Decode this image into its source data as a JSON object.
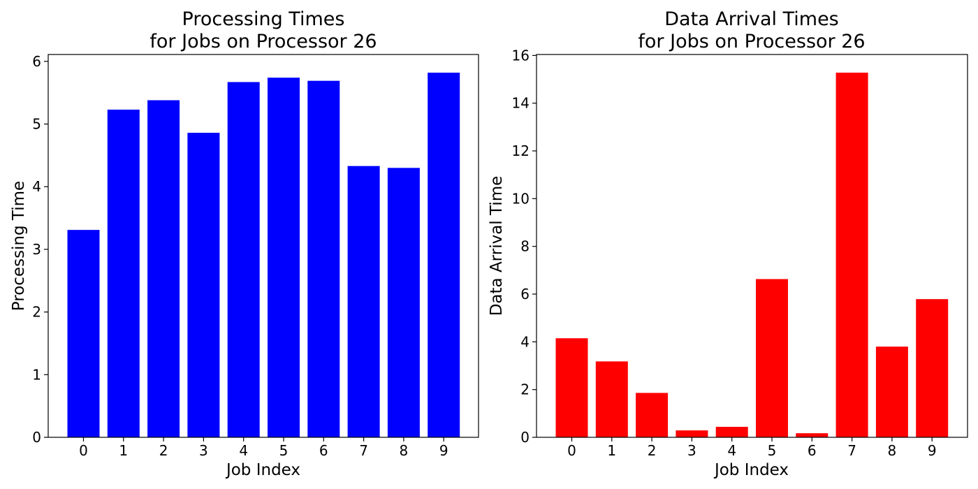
{
  "chart_data": [
    {
      "type": "bar",
      "title": [
        "Processing Times",
        "for Jobs on Processor 26"
      ],
      "xlabel": "Job Index",
      "ylabel": "Processing Time",
      "categories": [
        "0",
        "1",
        "2",
        "3",
        "4",
        "5",
        "6",
        "7",
        "8",
        "9"
      ],
      "values": [
        3.31,
        5.23,
        5.38,
        4.86,
        5.67,
        5.74,
        5.69,
        4.33,
        4.3,
        5.82
      ],
      "ylim": [
        0,
        6.11
      ],
      "yticks": [
        "0",
        "1",
        "2",
        "3",
        "4",
        "5",
        "6"
      ],
      "color": "#0000ff",
      "grid": false,
      "legend": "none"
    },
    {
      "type": "bar",
      "title": [
        "Data Arrival Times",
        "for Jobs on Processor 26"
      ],
      "xlabel": "Job Index",
      "ylabel": "Data Arrival Time",
      "categories": [
        "0",
        "1",
        "2",
        "3",
        "4",
        "5",
        "6",
        "7",
        "8",
        "9"
      ],
      "values": [
        4.15,
        3.18,
        1.86,
        0.29,
        0.44,
        6.63,
        0.17,
        15.28,
        3.8,
        5.79
      ],
      "ylim": [
        0,
        16.04
      ],
      "yticks": [
        "0",
        "2",
        "4",
        "6",
        "8",
        "10",
        "12",
        "14",
        "16"
      ],
      "color": "#ff0000",
      "grid": false,
      "legend": "none"
    }
  ]
}
